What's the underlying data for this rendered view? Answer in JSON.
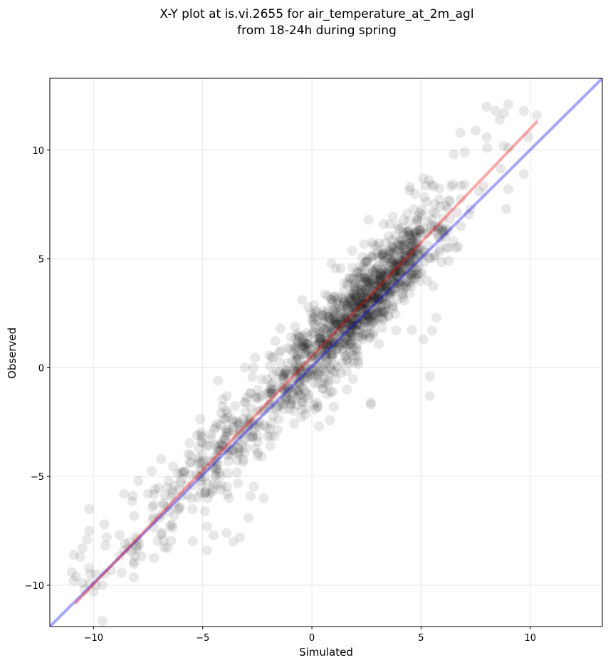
{
  "chart_data": {
    "type": "scatter",
    "title_lines": [
      "X-Y plot at is.vi.2655 for air_temperature_at_2m_agl",
      "from 18-24h during spring"
    ],
    "xlabel": "Simulated",
    "ylabel": "Observed",
    "xlim": [
      -12.0,
      13.3
    ],
    "ylim": [
      -11.9,
      13.3
    ],
    "xticks": [
      -10,
      -5,
      0,
      5,
      10
    ],
    "yticks": [
      -10,
      -5,
      0,
      5,
      10
    ],
    "xtick_labels": [
      "−10",
      "−5",
      "0",
      "5",
      "10"
    ],
    "ytick_labels": [
      "−10",
      "−5",
      "0",
      "5",
      "10"
    ],
    "grid": true,
    "point_color": "#000000",
    "point_alpha": 0.09,
    "lines": [
      {
        "role": "identity",
        "color": "#0000ff",
        "alpha": 0.35,
        "x": [
          -12.0,
          13.3
        ],
        "y": [
          -11.9,
          13.3
        ]
      },
      {
        "role": "fit",
        "color": "#ff0000",
        "alpha": 0.35,
        "x": [
          -10.8,
          10.3
        ],
        "y": [
          -10.8,
          11.3
        ]
      }
    ],
    "cloud_model": {
      "slope": 1.04,
      "intercept": 0.45,
      "scatter_sd": 1.05,
      "n": 1400
    },
    "points": [
      {
        "x": 8.0,
        "y": 12.0
      },
      {
        "x": 8.4,
        "y": 11.8
      },
      {
        "x": 8.8,
        "y": 11.7
      },
      {
        "x": 9.0,
        "y": 12.1
      },
      {
        "x": 9.7,
        "y": 11.8
      },
      {
        "x": 10.3,
        "y": 11.6
      },
      {
        "x": 8.6,
        "y": 11.4
      },
      {
        "x": 7.5,
        "y": 10.9
      },
      {
        "x": 6.8,
        "y": 10.8
      },
      {
        "x": 9.9,
        "y": 10.6
      },
      {
        "x": 9.0,
        "y": 10.1
      },
      {
        "x": 9.7,
        "y": 8.9
      },
      {
        "x": 9.0,
        "y": 8.2
      },
      {
        "x": 8.9,
        "y": 7.3
      },
      {
        "x": 5.7,
        "y": 2.3
      },
      {
        "x": 5.1,
        "y": 1.3
      },
      {
        "x": 5.5,
        "y": 1.7
      },
      {
        "x": 5.4,
        "y": -0.4
      },
      {
        "x": 5.4,
        "y": -1.3
      },
      {
        "x": 2.7,
        "y": -1.6
      },
      {
        "x": 2.7,
        "y": -1.7
      },
      {
        "x": 1.0,
        "y": -1.8
      },
      {
        "x": -1.0,
        "y": -1.5
      },
      {
        "x": -2.2,
        "y": -6.0
      },
      {
        "x": -2.8,
        "y": -5.9
      },
      {
        "x": -3.9,
        "y": -7.6
      },
      {
        "x": -3.3,
        "y": -7.8
      },
      {
        "x": -3.6,
        "y": -8.0
      },
      {
        "x": -4.8,
        "y": -8.4
      },
      {
        "x": -4.8,
        "y": -7.3
      },
      {
        "x": -4.9,
        "y": -6.6
      },
      {
        "x": -4.5,
        "y": -7.7
      },
      {
        "x": -2.9,
        "y": -6.9
      },
      {
        "x": -6.9,
        "y": -4.2
      },
      {
        "x": -8.2,
        "y": -5.9
      },
      {
        "x": -8.6,
        "y": -5.8
      },
      {
        "x": -7.5,
        "y": -5.8
      },
      {
        "x": -10.2,
        "y": -6.5
      },
      {
        "x": -9.5,
        "y": -7.2
      },
      {
        "x": -10.2,
        "y": -7.5
      },
      {
        "x": -10.3,
        "y": -7.9
      },
      {
        "x": -10.5,
        "y": -8.3
      },
      {
        "x": -10.9,
        "y": -8.6
      },
      {
        "x": -10.6,
        "y": -8.7
      },
      {
        "x": -9.4,
        "y": -7.8
      },
      {
        "x": -8.8,
        "y": -7.7
      },
      {
        "x": -8.6,
        "y": -8.4
      },
      {
        "x": -9.9,
        "y": -10.0
      },
      {
        "x": -9.6,
        "y": -10.0
      },
      {
        "x": -10.0,
        "y": -10.3
      },
      {
        "x": -10.4,
        "y": -10.2
      },
      {
        "x": -10.9,
        "y": -9.8
      },
      {
        "x": -11.0,
        "y": -9.4
      },
      {
        "x": -10.8,
        "y": -9.6
      },
      {
        "x": -10.5,
        "y": -9.9
      },
      {
        "x": -10.2,
        "y": -9.2
      },
      {
        "x": -9.9,
        "y": -9.5
      },
      {
        "x": -7.3,
        "y": -7.0
      },
      {
        "x": -7.0,
        "y": -6.9
      },
      {
        "x": -6.6,
        "y": -6.4
      },
      {
        "x": -6.3,
        "y": -6.8
      },
      {
        "x": 0.9,
        "y": 4.8
      },
      {
        "x": 0.5,
        "y": 2.6
      },
      {
        "x": -1.1,
        "y": 0.9
      },
      {
        "x": -1.5,
        "y": 0.7
      },
      {
        "x": -4.3,
        "y": -0.6
      },
      {
        "x": -3.9,
        "y": -1.3
      },
      {
        "x": 2.6,
        "y": 6.8
      },
      {
        "x": 6.5,
        "y": 9.8
      },
      {
        "x": 7.0,
        "y": 9.9
      },
      {
        "x": 8.0,
        "y": 10.6
      },
      {
        "x": 5.1,
        "y": 8.7
      },
      {
        "x": 4.5,
        "y": 8.3
      }
    ]
  }
}
